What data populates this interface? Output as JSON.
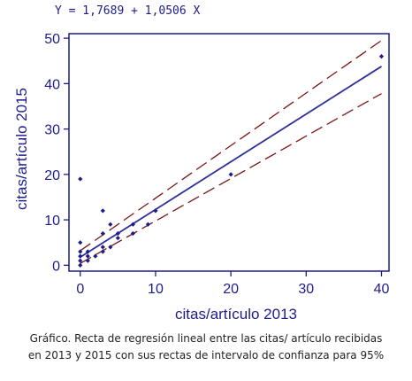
{
  "equation": {
    "text": "Y = 1,7689  +  1,0506  X"
  },
  "caption": {
    "line1": "Gráfico. Recta de regresión lineal entre las citas/ artículo recibidas",
    "line2": "en 2013 y 2015 con sus rectas de intervalo de confianza para 95%"
  },
  "chart_data": {
    "type": "scatter",
    "xlabel": "citas/artículo 2013",
    "ylabel": "citas/artículo 2015",
    "xlim": [
      -1.5,
      41
    ],
    "ylim": [
      -1.3,
      51
    ],
    "x_ticks": [
      0,
      10,
      20,
      30,
      40
    ],
    "y_ticks": [
      0,
      10,
      20,
      30,
      40,
      50
    ],
    "grid": false,
    "points": [
      {
        "x": 0,
        "y": 19
      },
      {
        "x": 0,
        "y": 5
      },
      {
        "x": 0,
        "y": 3
      },
      {
        "x": 0,
        "y": 2
      },
      {
        "x": 0,
        "y": 1
      },
      {
        "x": 0,
        "y": 0
      },
      {
        "x": 1,
        "y": 3
      },
      {
        "x": 1,
        "y": 2
      },
      {
        "x": 1,
        "y": 1
      },
      {
        "x": 2,
        "y": 2
      },
      {
        "x": 3,
        "y": 12
      },
      {
        "x": 3,
        "y": 7
      },
      {
        "x": 3,
        "y": 4
      },
      {
        "x": 3,
        "y": 3
      },
      {
        "x": 4,
        "y": 9
      },
      {
        "x": 4,
        "y": 4
      },
      {
        "x": 5,
        "y": 7
      },
      {
        "x": 5,
        "y": 6
      },
      {
        "x": 7,
        "y": 9
      },
      {
        "x": 7,
        "y": 7
      },
      {
        "x": 9,
        "y": 9
      },
      {
        "x": 10,
        "y": 12
      },
      {
        "x": 20,
        "y": 20
      },
      {
        "x": 40,
        "y": 46
      }
    ],
    "regression": {
      "intercept": 1.7689,
      "slope": 1.0506,
      "x_range": [
        0,
        40
      ]
    },
    "confidence_bands": [
      {
        "name": "upper",
        "points": [
          [
            0,
            3.2
          ],
          [
            40,
            49.5
          ]
        ]
      },
      {
        "name": "lower",
        "points": [
          [
            0,
            0.4
          ],
          [
            40,
            37.8
          ]
        ]
      }
    ],
    "colors": {
      "axis": "#1d1d8a",
      "points": "#1d1d8a",
      "regression_line": "#2f2f9a",
      "confidence_bands": "#7a1515"
    }
  }
}
